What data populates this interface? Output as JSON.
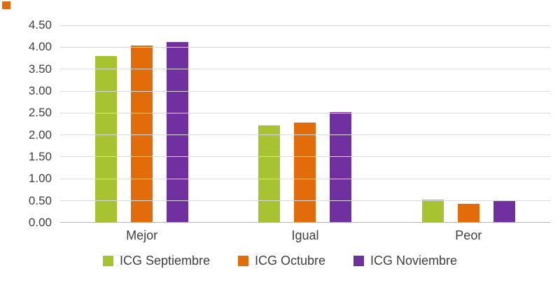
{
  "chart_data": {
    "type": "bar",
    "categories": [
      "Mejor",
      "Igual",
      "Peor"
    ],
    "series": [
      {
        "name": "ICG Septiembre",
        "color": "#a7c32f",
        "values": [
          3.8,
          2.21,
          0.52
        ]
      },
      {
        "name": "ICG Octubre",
        "color": "#e36c0a",
        "values": [
          4.03,
          2.27,
          0.41
        ]
      },
      {
        "name": "ICG Noviembre",
        "color": "#7030a0",
        "values": [
          4.12,
          2.52,
          0.48
        ]
      }
    ],
    "title": "",
    "xlabel": "",
    "ylabel": "",
    "ylim": [
      0,
      4.5
    ],
    "ytick_step": 0.5,
    "ytick_format_decimals": 2,
    "grid": true,
    "legend_position": "bottom"
  },
  "decorations": {
    "corner_square_color": "#e36c0a"
  }
}
